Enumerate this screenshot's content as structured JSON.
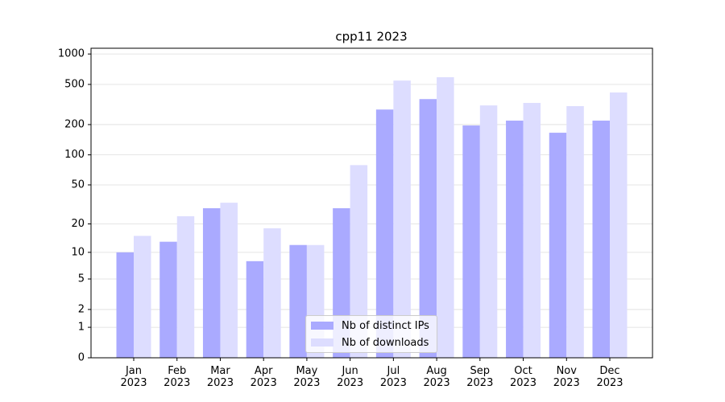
{
  "chart_data": {
    "type": "bar",
    "title": "cpp11 2023",
    "yscale": "log1p",
    "grid": true,
    "categories": [
      "Jan 2023",
      "Feb 2023",
      "Mar 2023",
      "Apr 2023",
      "May 2023",
      "Jun 2023",
      "Jul 2023",
      "Aug 2023",
      "Sep 2023",
      "Oct 2023",
      "Nov 2023",
      "Dec 2023"
    ],
    "series": [
      {
        "name": "Nb of distinct IPs",
        "color": "#aaaaff",
        "values": [
          10,
          13,
          29,
          8,
          12,
          29,
          282,
          358,
          196,
          219,
          166,
          219
        ]
      },
      {
        "name": "Nb of downloads",
        "color": "#ddddff",
        "values": [
          15,
          24,
          33,
          18,
          12,
          79,
          546,
          589,
          310,
          328,
          305,
          416
        ]
      }
    ],
    "ylim": [
      0,
      1140
    ],
    "yticks": [
      0,
      1,
      2,
      5,
      10,
      20,
      50,
      100,
      200,
      500,
      1000
    ],
    "legend": "lower center"
  }
}
